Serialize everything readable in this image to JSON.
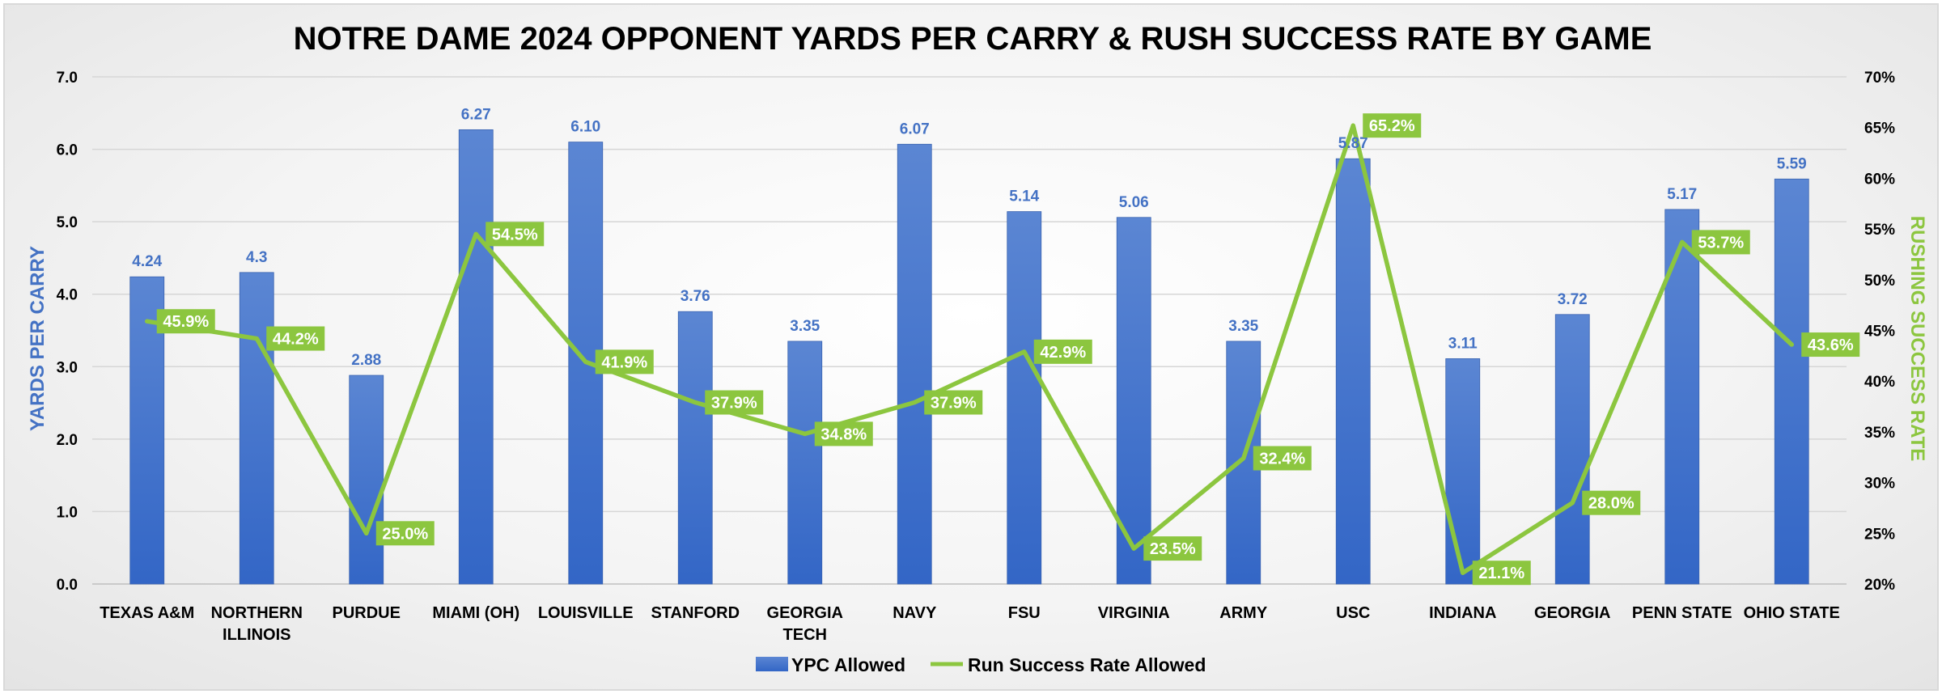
{
  "chart_data": {
    "type": "bar",
    "title": "NOTRE DAME 2024 OPPONENT YARDS PER CARRY & RUSH SUCCESS RATE BY GAME",
    "categories": [
      "TEXAS A&M",
      "NORTHERN ILLINOIS",
      "PURDUE",
      "MIAMI (OH)",
      "LOUISVILLE",
      "STANFORD",
      "GEORGIA TECH",
      "NAVY",
      "FSU",
      "VIRGINIA",
      "ARMY",
      "USC",
      "INDIANA",
      "GEORGIA",
      "PENN STATE",
      "OHIO STATE"
    ],
    "category_lines": [
      [
        "TEXAS A&M"
      ],
      [
        "NORTHERN",
        "ILLINOIS"
      ],
      [
        "PURDUE"
      ],
      [
        "MIAMI (OH)"
      ],
      [
        "LOUISVILLE"
      ],
      [
        "STANFORD"
      ],
      [
        "GEORGIA",
        "TECH"
      ],
      [
        "NAVY"
      ],
      [
        "FSU"
      ],
      [
        "VIRGINIA"
      ],
      [
        "ARMY"
      ],
      [
        "USC"
      ],
      [
        "INDIANA"
      ],
      [
        "GEORGIA"
      ],
      [
        "PENN STATE"
      ],
      [
        "OHIO STATE"
      ]
    ],
    "series": [
      {
        "name": "YPC Allowed",
        "type": "bar",
        "axis": "left",
        "color": "#4472c4",
        "values": [
          4.24,
          4.3,
          2.88,
          6.27,
          6.1,
          3.76,
          3.35,
          6.07,
          5.14,
          5.06,
          3.35,
          5.87,
          3.11,
          3.72,
          5.17,
          5.59
        ],
        "labels": [
          "4.24",
          "4.3",
          "2.88",
          "6.27",
          "6.10",
          "3.76",
          "3.35",
          "6.07",
          "5.14",
          "5.06",
          "3.35",
          "5.87",
          "3.11",
          "3.72",
          "5.17",
          "5.59"
        ]
      },
      {
        "name": "Run Success Rate Allowed",
        "type": "line",
        "axis": "right",
        "color": "#8cc63f",
        "values": [
          45.9,
          44.2,
          25.0,
          54.5,
          41.9,
          37.9,
          34.8,
          37.9,
          42.9,
          23.5,
          32.4,
          65.2,
          21.1,
          28.0,
          53.7,
          43.6
        ],
        "labels": [
          "45.9%",
          "44.2%",
          "25.0%",
          "54.5%",
          "41.9%",
          "37.9%",
          "34.8%",
          "37.9%",
          "42.9%",
          "23.5%",
          "32.4%",
          "65.2%",
          "21.1%",
          "28.0%",
          "53.7%",
          "43.6%"
        ]
      }
    ],
    "y_left": {
      "label": "YARDS PER CARRY",
      "min": 0,
      "max": 7,
      "ticks": [
        "0.0",
        "1.0",
        "2.0",
        "3.0",
        "4.0",
        "5.0",
        "6.0",
        "7.0"
      ],
      "color": "#4472c4"
    },
    "y_right": {
      "label": "RUSHING SUCCESS RATE",
      "min": 20,
      "max": 70,
      "ticks": [
        "20%",
        "25%",
        "30%",
        "35%",
        "40%",
        "45%",
        "50%",
        "55%",
        "60%",
        "65%",
        "70%"
      ],
      "color": "#8cc63f"
    },
    "grid": true,
    "legend_position": "bottom"
  }
}
